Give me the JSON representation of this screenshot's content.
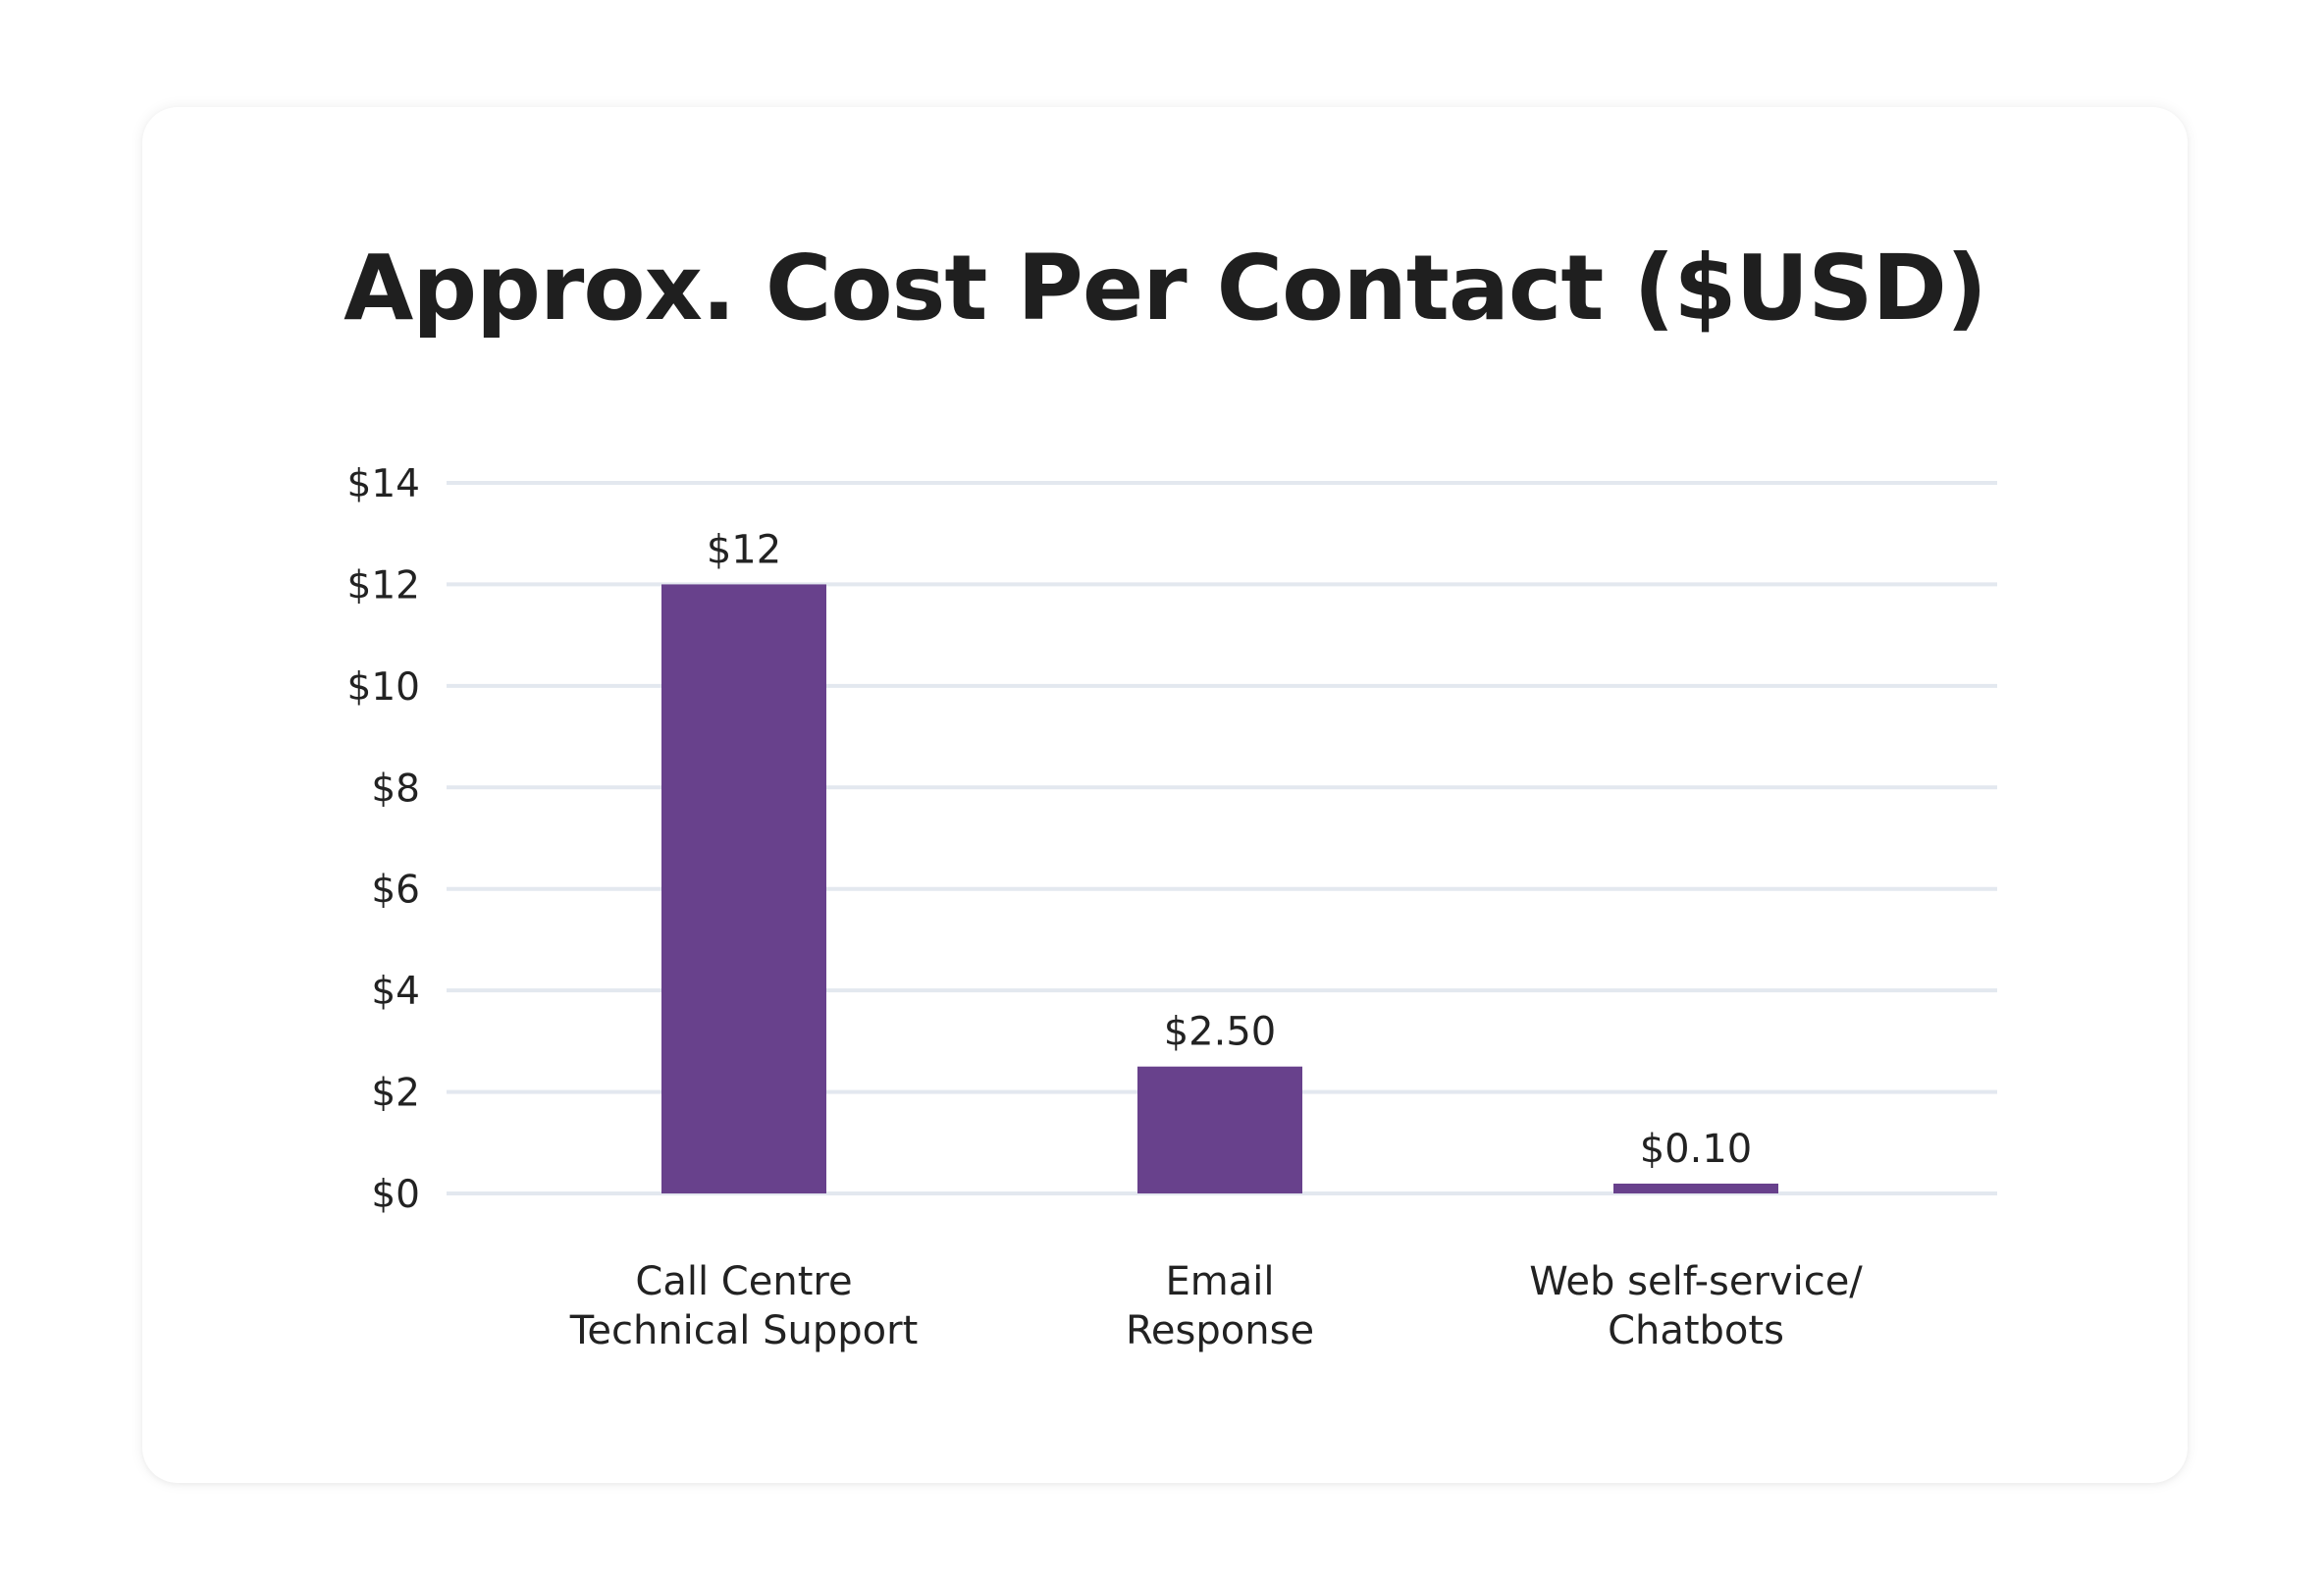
{
  "chart_data": {
    "type": "bar",
    "title": "Approx. Cost Per Contact ($USD)",
    "categories": [
      [
        "Call Centre",
        "Technical Support"
      ],
      [
        "Email",
        "Response"
      ],
      [
        "Web self-service/",
        "Chatbots"
      ]
    ],
    "values": [
      12,
      2.5,
      0.1
    ],
    "data_labels": [
      "$12",
      "$2.50",
      "$0.10"
    ],
    "y_ticks": [
      0,
      2,
      4,
      6,
      8,
      10,
      12,
      14
    ],
    "y_tick_labels": [
      "$0",
      "$2",
      "$4",
      "$6",
      "$8",
      "$10",
      "$12",
      "$14"
    ],
    "ylim": [
      0,
      14
    ],
    "xlabel": "",
    "ylabel": "",
    "grid": true,
    "legend": "none",
    "bar_color": "#68418c",
    "grid_color": "#e3e8ef"
  }
}
